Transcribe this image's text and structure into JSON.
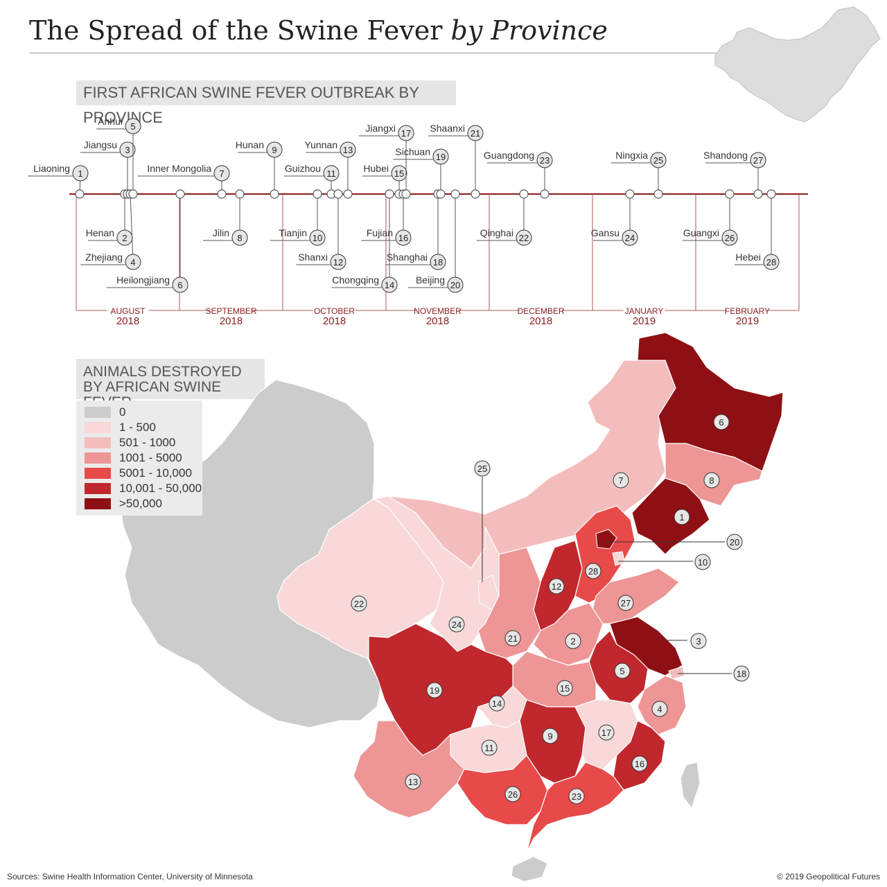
{
  "title": {
    "main": "The Spread of the Swine Fever",
    "italic": "by Province"
  },
  "timeline_heading": "FIRST AFRICAN SWINE FEVER OUTBREAK BY PROVINCE",
  "map_heading": {
    "line1": "ANIMALS DESTROYED",
    "line2": "BY AFRICAN SWINE FEVER"
  },
  "legend": [
    {
      "label": "0",
      "color": "#cccccc"
    },
    {
      "label": "1 - 500",
      "color": "#f8d8d8"
    },
    {
      "label": "501 - 1000",
      "color": "#f4bdbd"
    },
    {
      "label": "1001 - 5000",
      "color": "#ee9595"
    },
    {
      "label": "5001 - 10,000",
      "color": "#e84a4a"
    },
    {
      "label": "10,001 - 50,000",
      "color": "#c0282d"
    },
    {
      "label": ">50,000",
      "color": "#8e1014"
    }
  ],
  "months": [
    {
      "month": "AUGUST",
      "year": "2018"
    },
    {
      "month": "SEPTEMBER",
      "year": "2018"
    },
    {
      "month": "OCTOBER",
      "year": "2018"
    },
    {
      "month": "NOVEMBER",
      "year": "2018"
    },
    {
      "month": "DECEMBER",
      "year": "2018"
    },
    {
      "month": "JANUARY",
      "year": "2019"
    },
    {
      "month": "FEBRUARY",
      "year": "2019"
    }
  ],
  "outbreaks": [
    {
      "n": "1",
      "province": "Liaoning"
    },
    {
      "n": "2",
      "province": "Henan"
    },
    {
      "n": "3",
      "province": "Jiangsu"
    },
    {
      "n": "4",
      "province": "Zhejiang"
    },
    {
      "n": "5",
      "province": "Anhui"
    },
    {
      "n": "6",
      "province": "Heilongjiang"
    },
    {
      "n": "7",
      "province": "Inner Mongolia"
    },
    {
      "n": "8",
      "province": "Jilin"
    },
    {
      "n": "9",
      "province": "Hunan"
    },
    {
      "n": "10",
      "province": "Tianjin"
    },
    {
      "n": "11",
      "province": "Guizhou"
    },
    {
      "n": "12",
      "province": "Shanxi"
    },
    {
      "n": "13",
      "province": "Yunnan"
    },
    {
      "n": "14",
      "province": "Chongqing"
    },
    {
      "n": "15",
      "province": "Hubei"
    },
    {
      "n": "16",
      "province": "Fujian"
    },
    {
      "n": "17",
      "province": "Jiangxi"
    },
    {
      "n": "18",
      "province": "Shanghai"
    },
    {
      "n": "19",
      "province": "Sichuan"
    },
    {
      "n": "20",
      "province": "Beijing"
    },
    {
      "n": "21",
      "province": "Shaanxi"
    },
    {
      "n": "22",
      "province": "Qinghai"
    },
    {
      "n": "23",
      "province": "Guangdong"
    },
    {
      "n": "24",
      "province": "Gansu"
    },
    {
      "n": "25",
      "province": "Ningxia"
    },
    {
      "n": "26",
      "province": "Guangxi"
    },
    {
      "n": "27",
      "province": "Shandong"
    },
    {
      "n": "28",
      "province": "Hebei"
    }
  ],
  "footer": {
    "source": "Sources: Swine Health Information Center, University of Minnesota",
    "copyright": "© 2019 Geopolitical Futures"
  }
}
